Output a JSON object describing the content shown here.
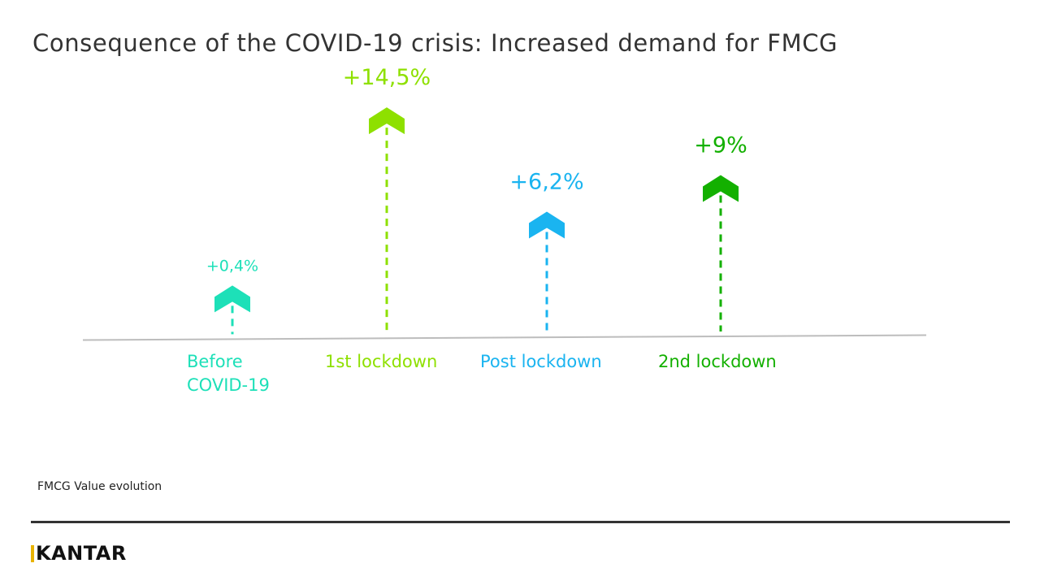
{
  "title": "Consequence of the COVID-19 crisis: Increased demand for FMCG",
  "subtitle": "FMCG Value evolution",
  "brand": {
    "name": "KANTAR",
    "logo_text": "KANTAR",
    "accent_color": "#e8b300"
  },
  "chart_data": {
    "type": "bar",
    "title": "Consequence of the COVID-19 crisis: Increased demand for FMCG",
    "xlabel": "",
    "ylabel": "FMCG Value evolution",
    "ylim": [
      0,
      16
    ],
    "grid": false,
    "categories": [
      [
        "Before",
        "COVID-19"
      ],
      [
        "1st lockdown"
      ],
      [
        "Post lockdown"
      ],
      [
        "2nd lockdown"
      ]
    ],
    "values": [
      0.4,
      14.5,
      6.2,
      9
    ],
    "labels": [
      "+0,4%",
      "+14,5%",
      "+6,2%",
      "+9%"
    ],
    "colors": [
      "#1de0b8",
      "#8ee000",
      "#1ab4f0",
      "#13b000"
    ],
    "marker": "dashed-arrow-up"
  }
}
